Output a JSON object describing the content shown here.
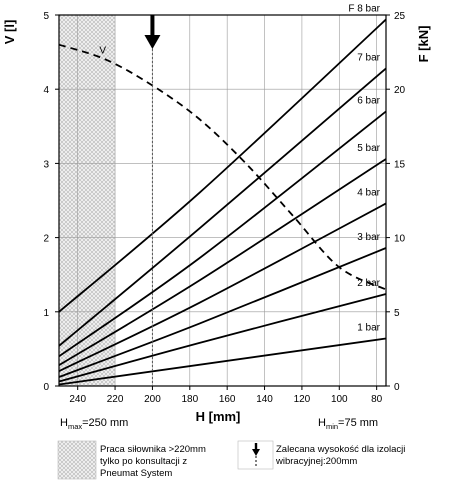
{
  "chart_data": {
    "type": "line",
    "x_axis": {
      "label": "H [mm]",
      "range": [
        250,
        75
      ],
      "ticks": [
        240,
        220,
        200,
        180,
        160,
        140,
        120,
        100,
        80
      ],
      "hmax_main": "H",
      "hmax_sub": "max",
      "hmax_rest": "=250 mm",
      "hmin_main": "H",
      "hmin_sub": "min",
      "hmin_rest": "=75 mm"
    },
    "y_left": {
      "label": "V [l]",
      "range": [
        0,
        5
      ],
      "ticks": [
        0,
        1,
        2,
        3,
        4,
        5
      ]
    },
    "y_right": {
      "label": "F [kN]",
      "range": [
        0,
        25
      ],
      "ticks": [
        0,
        5,
        10,
        15,
        20,
        25
      ]
    },
    "grid": true,
    "force_series": [
      {
        "name": "1 bar",
        "label": "1 bar",
        "points": [
          [
            250,
            0.1
          ],
          [
            75,
            3.2
          ]
        ]
      },
      {
        "name": "2 bar",
        "label": "2 bar",
        "points": [
          [
            250,
            0.3
          ],
          [
            175,
            2.9
          ],
          [
            75,
            6.2
          ]
        ]
      },
      {
        "name": "3 bar",
        "label": "3 bar",
        "points": [
          [
            250,
            0.6
          ],
          [
            175,
            4.2
          ],
          [
            75,
            9.3
          ]
        ]
      },
      {
        "name": "4 bar",
        "label": "4 bar",
        "points": [
          [
            250,
            1.0
          ],
          [
            175,
            5.6
          ],
          [
            75,
            12.3
          ]
        ]
      },
      {
        "name": "5 bar",
        "label": "5 bar",
        "points": [
          [
            250,
            1.4
          ],
          [
            175,
            7.1
          ],
          [
            75,
            15.3
          ]
        ]
      },
      {
        "name": "6 bar",
        "label": "6 bar",
        "points": [
          [
            250,
            2.0
          ],
          [
            175,
            8.6
          ],
          [
            75,
            18.5
          ]
        ]
      },
      {
        "name": "7 bar",
        "label": "7 bar",
        "points": [
          [
            250,
            2.7
          ],
          [
            175,
            10.6
          ],
          [
            75,
            21.4
          ]
        ]
      },
      {
        "name": "8 bar",
        "label": "F 8 bar",
        "points": [
          [
            250,
            5.0
          ],
          [
            175,
            13.0
          ],
          [
            75,
            24.7
          ]
        ]
      }
    ],
    "volume_series": {
      "name": "V",
      "label": "V",
      "style": "dashed",
      "points": [
        [
          250,
          4.6
        ],
        [
          225,
          4.4
        ],
        [
          200,
          4.05
        ],
        [
          175,
          3.6
        ],
        [
          150,
          3.0
        ],
        [
          125,
          2.3
        ],
        [
          100,
          1.6
        ],
        [
          75,
          1.3
        ]
      ]
    },
    "shaded_region": {
      "from": 250,
      "to": 220,
      "pattern": "crosshatch"
    },
    "arrow_marker": {
      "x": 200
    }
  },
  "legend": {
    "shaded_text": [
      "Praca siłownika >220mm",
      "tylko po konsultacji z",
      "Pneumat System"
    ],
    "arrow_text": [
      "Zalecana wysokość dla izolacji",
      "wibracyjnej:200mm"
    ]
  }
}
